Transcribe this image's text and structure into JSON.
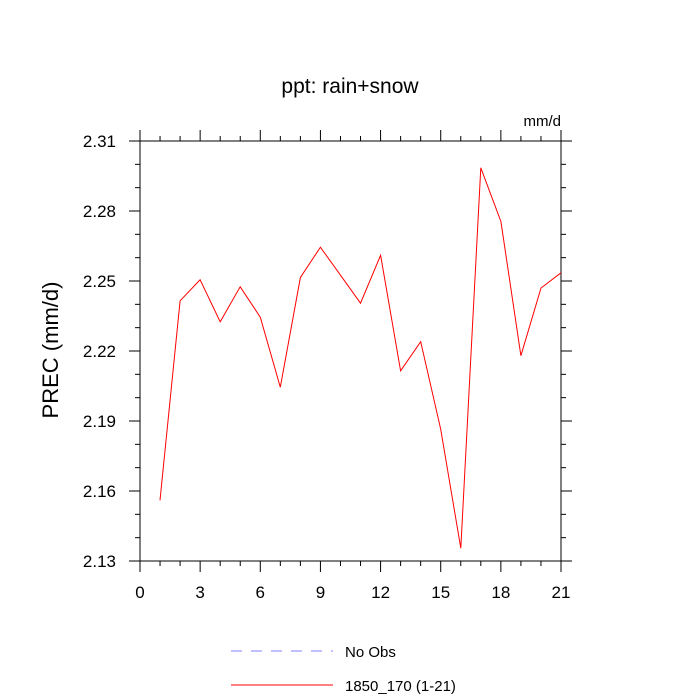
{
  "chart_data": {
    "type": "line",
    "title": "ppt: rain+snow",
    "units_label": "mm/d",
    "ylabel": "PREC  (mm/d)",
    "xlabel": "",
    "xlim": [
      0,
      21
    ],
    "ylim": [
      2.13,
      2.31
    ],
    "x_ticks": [
      0,
      3,
      6,
      9,
      12,
      15,
      18,
      21
    ],
    "y_ticks": [
      2.13,
      2.16,
      2.19,
      2.22,
      2.25,
      2.28,
      2.31
    ],
    "grid": false,
    "legend_position": "bottom-center",
    "series": [
      {
        "name": "1850_170 (1-21)",
        "color": "#ff0000",
        "dash": "solid",
        "x": [
          1,
          2,
          3,
          4,
          5,
          6,
          7,
          8,
          9,
          10,
          11,
          12,
          13,
          14,
          15,
          16,
          17,
          18,
          19,
          20,
          21
        ],
        "y": [
          2.156,
          2.2415,
          2.2505,
          2.2325,
          2.2475,
          2.2345,
          2.2045,
          2.2515,
          2.2645,
          2.2525,
          2.2405,
          2.261,
          2.2115,
          2.224,
          2.1865,
          2.1355,
          2.2985,
          2.2755,
          2.218,
          2.247,
          2.2535
        ]
      }
    ],
    "legend": [
      {
        "label": "No Obs",
        "color": "#8080ff",
        "dash": "dashed"
      },
      {
        "label": "1850_170 (1-21)",
        "color": "#ff0000",
        "dash": "solid"
      }
    ]
  }
}
